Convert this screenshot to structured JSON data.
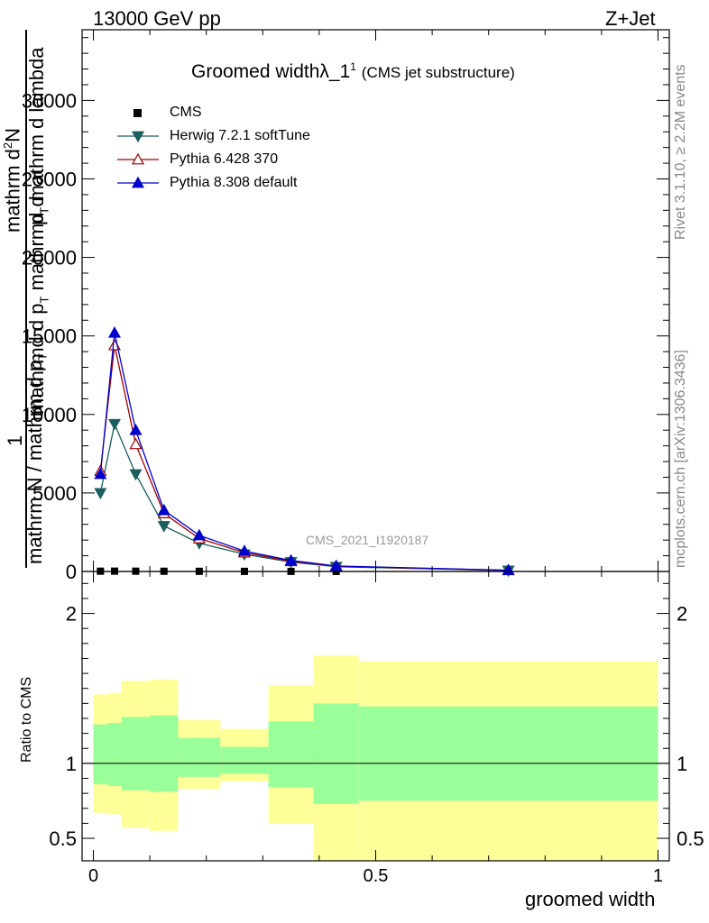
{
  "header": {
    "left": "13000 GeV pp",
    "right": "Z+Jet"
  },
  "side": {
    "rivet": "Rivet 3.1.10, ≥ 2.2M events",
    "mcplots": "mcplots.cern.ch [arXiv:1306.3436]"
  },
  "watermark": "CMS_2021_I1920187",
  "colors": {
    "cms": "#000000",
    "herwig": "#1b5e5e",
    "pythia6": "#a00000",
    "pythia8": "#0000cc",
    "band_inner": "#99ff99",
    "band_outer": "#ffff99"
  },
  "chart_data": [
    {
      "type": "line",
      "title": "Groomed widthλ_1",
      "title_sup": "1",
      "title_suffix": "(CMS jet substructure)",
      "ylabel": "1 / mathrm N / mathrm d p_T    mathrm d^2N / mathrm d p_T mathrm d lambda",
      "ylabel_parts": {
        "one": "1",
        "denominator": "mathrm N / mathrm d p",
        "denominator_sub": "T",
        "numerator": "mathrm d",
        "numerator_sup": "2",
        "numerator_tail": "N",
        "lower_line": "mathrmd d p",
        "lower_line_sub": "T",
        "lower_line_tail": "mathrmd d",
        "upper_right": "mathrm d",
        "upper_right_sub": "T",
        "upper_right_tail": "mathrm d lambda",
        "upper_p": "p"
      },
      "xlim": [
        -0.02,
        1.02
      ],
      "ylim": [
        0,
        34500
      ],
      "yticks": [
        0,
        5000,
        10000,
        15000,
        20000,
        25000,
        30000
      ],
      "ytick_labels": [
        "0",
        "5000",
        "10000",
        "15000",
        "20000",
        "25000",
        "30000"
      ],
      "legend_position": "top-left",
      "x": [
        0.0125,
        0.0375,
        0.075,
        0.125,
        0.1875,
        0.2675,
        0.35,
        0.43,
        0.735
      ],
      "series": [
        {
          "name": "CMS",
          "marker": "square",
          "values": [
            18,
            22,
            18,
            14,
            10,
            7,
            5,
            3,
            1
          ]
        },
        {
          "name": "Herwig 7.2.1 softTune",
          "marker": "triangle-down",
          "values": [
            5000,
            9400,
            6200,
            2900,
            1800,
            1100,
            600,
            300,
            60
          ]
        },
        {
          "name": "Pythia 6.428 370",
          "marker": "triangle-up-open",
          "values": [
            6400,
            14400,
            8100,
            3700,
            2100,
            1200,
            650,
            330,
            70
          ]
        },
        {
          "name": "Pythia 8.308 default",
          "marker": "triangle-up",
          "values": [
            6200,
            15200,
            9000,
            3900,
            2300,
            1300,
            700,
            350,
            80
          ]
        }
      ]
    },
    {
      "type": "area",
      "ylabel": "Ratio to CMS",
      "xlabel": "groomed width",
      "xlim": [
        -0.02,
        1.02
      ],
      "ylim": [
        0.35,
        2.28
      ],
      "yticks": [
        0.5,
        1,
        2
      ],
      "ytick_labels": [
        "0.5",
        "1",
        "2"
      ],
      "xticks": [
        0,
        0.5,
        1
      ],
      "xtick_labels": [
        "0",
        "0.5",
        "1"
      ],
      "bins": [
        {
          "lo": 0.0,
          "hi": 0.025,
          "inner": [
            0.86,
            1.26
          ],
          "outer": [
            0.67,
            1.46
          ]
        },
        {
          "lo": 0.025,
          "hi": 0.05,
          "inner": [
            0.85,
            1.27
          ],
          "outer": [
            0.66,
            1.47
          ]
        },
        {
          "lo": 0.05,
          "hi": 0.1,
          "inner": [
            0.82,
            1.31
          ],
          "outer": [
            0.57,
            1.55
          ]
        },
        {
          "lo": 0.1,
          "hi": 0.15,
          "inner": [
            0.81,
            1.32
          ],
          "outer": [
            0.55,
            1.56
          ]
        },
        {
          "lo": 0.15,
          "hi": 0.225,
          "inner": [
            0.91,
            1.17
          ],
          "outer": [
            0.83,
            1.29
          ]
        },
        {
          "lo": 0.225,
          "hi": 0.31,
          "inner": [
            0.93,
            1.11
          ],
          "outer": [
            0.88,
            1.23
          ]
        },
        {
          "lo": 0.31,
          "hi": 0.39,
          "inner": [
            0.84,
            1.28
          ],
          "outer": [
            0.6,
            1.52
          ]
        },
        {
          "lo": 0.39,
          "hi": 0.47,
          "inner": [
            0.73,
            1.4
          ],
          "outer": [
            0.3,
            1.72
          ]
        },
        {
          "lo": 0.47,
          "hi": 1.0,
          "inner": [
            0.75,
            1.38
          ],
          "outer": [
            0.3,
            1.68
          ]
        }
      ],
      "reference_line": 1
    }
  ]
}
